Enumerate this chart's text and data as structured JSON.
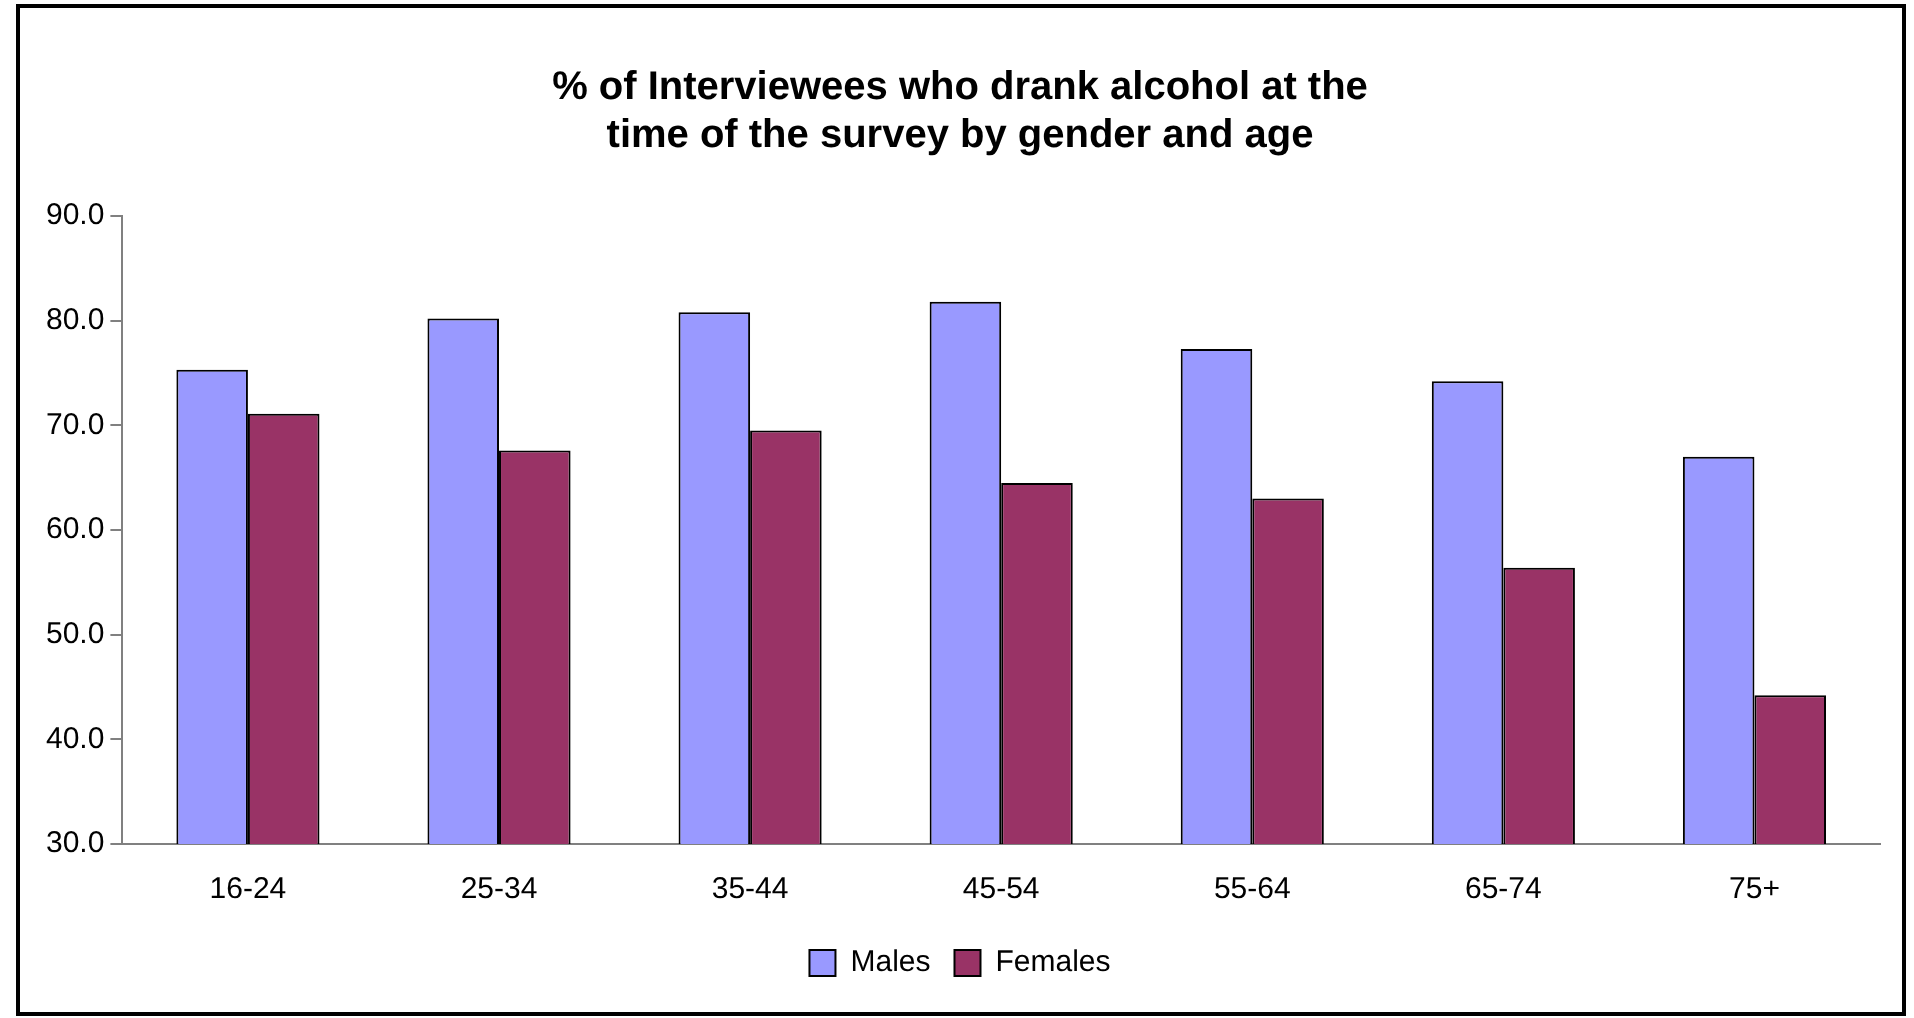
{
  "chart_data": {
    "type": "bar",
    "title": "% of Interviewees who drank alcohol at the time of the survey by gender and age",
    "categories": [
      "16-24",
      "25-34",
      "35-44",
      "45-54",
      "55-64",
      "65-74",
      "75+"
    ],
    "series": [
      {
        "name": "Males",
        "color": "#9999ff",
        "values": [
          75.3,
          80.2,
          80.8,
          81.8,
          77.3,
          74.2,
          67.0
        ]
      },
      {
        "name": "Females",
        "color": "#993366",
        "values": [
          71.1,
          67.6,
          69.5,
          64.5,
          63.0,
          56.4,
          44.2
        ]
      }
    ],
    "ylim": [
      30,
      90
    ],
    "yticks": [
      {
        "value": 30,
        "label": "30.0"
      },
      {
        "value": 40,
        "label": "40.0"
      },
      {
        "value": 50,
        "label": "50.0"
      },
      {
        "value": 60,
        "label": "60.0"
      },
      {
        "value": 70,
        "label": "70.0"
      },
      {
        "value": 80,
        "label": "80.0"
      },
      {
        "value": 90,
        "label": "90.0"
      }
    ],
    "grid": false,
    "legend": "bottom"
  }
}
